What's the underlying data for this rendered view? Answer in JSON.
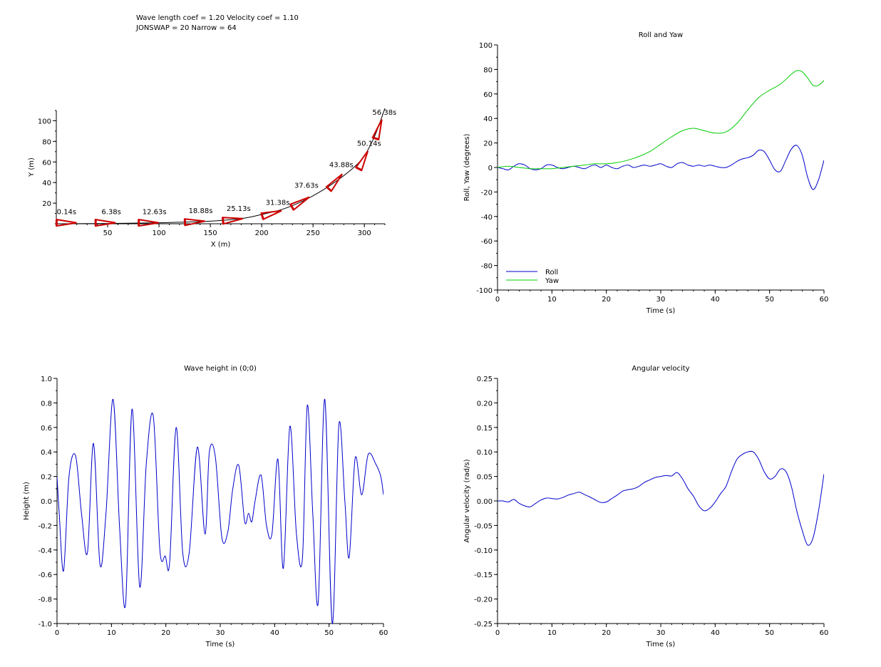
{
  "header": {
    "line1": "Wave length coef = 1.20 Velocity coef = 1.10",
    "line2": "JONSWAP = 20 Narrow = 64"
  },
  "chart_data": [
    {
      "id": "trajectory",
      "type": "line",
      "title": "",
      "xlabel": "X (m)",
      "ylabel": "Y (m)",
      "xlim": [
        0,
        320
      ],
      "ylim": [
        0,
        110
      ],
      "xticks": [
        50,
        100,
        150,
        200,
        250,
        300
      ],
      "yticks": [
        20,
        40,
        60,
        80,
        100
      ],
      "path": [
        [
          0,
          0
        ],
        [
          50,
          0.3
        ],
        [
          100,
          1
        ],
        [
          150,
          2.5
        ],
        [
          180,
          5
        ],
        [
          200,
          9
        ],
        [
          220,
          14
        ],
        [
          240,
          22
        ],
        [
          260,
          33
        ],
        [
          275,
          43
        ],
        [
          290,
          55
        ],
        [
          300,
          66
        ],
        [
          310,
          85
        ],
        [
          320,
          112
        ]
      ],
      "boats": [
        {
          "x": 10,
          "y": 1,
          "heading": 0,
          "label": "0.14s"
        },
        {
          "x": 48,
          "y": 1,
          "heading": 0,
          "label": "6.38s"
        },
        {
          "x": 90,
          "y": 1,
          "heading": 0,
          "label": "12.63s"
        },
        {
          "x": 135,
          "y": 2,
          "heading": 3,
          "label": "18.88s"
        },
        {
          "x": 172,
          "y": 4,
          "heading": 6,
          "label": "25.13s"
        },
        {
          "x": 210,
          "y": 10,
          "heading": 16,
          "label": "31.38s"
        },
        {
          "x": 238,
          "y": 21,
          "heading": 30,
          "label": "37.63s"
        },
        {
          "x": 272,
          "y": 41,
          "heading": 48,
          "label": "43.88s"
        },
        {
          "x": 299,
          "y": 62,
          "heading": 63,
          "label": "50.14s"
        },
        {
          "x": 314,
          "y": 92,
          "heading": 72,
          "label": "56.38s"
        }
      ],
      "boat_color": "#cc0000"
    },
    {
      "id": "roll-yaw",
      "type": "line",
      "title": "Roll and Yaw",
      "xlabel": "Time (s)",
      "ylabel": "Roll, Yaw (degrees)",
      "xlim": [
        0,
        60
      ],
      "ylim": [
        -100,
        100
      ],
      "xticks": [
        0,
        10,
        20,
        30,
        40,
        50,
        60
      ],
      "yticks": [
        -100,
        -80,
        -60,
        -40,
        -20,
        0,
        20,
        40,
        60,
        80,
        100
      ],
      "legend": "bottom-left",
      "series": [
        {
          "name": "Roll",
          "color": "#0000cc",
          "x": [
            0,
            1,
            2,
            3,
            4,
            5,
            6,
            7,
            8,
            9,
            10,
            11,
            12,
            13,
            14,
            15,
            16,
            17,
            18,
            19,
            20,
            21,
            22,
            23,
            24,
            25,
            26,
            27,
            28,
            29,
            30,
            31,
            32,
            33,
            34,
            35,
            36,
            37,
            38,
            39,
            40,
            41,
            42,
            43,
            44,
            45,
            46,
            47,
            48,
            49,
            50,
            51,
            52,
            53,
            54,
            55,
            56,
            57,
            58,
            59,
            60
          ],
          "values": [
            0,
            -1,
            -2,
            1,
            3,
            2,
            -1,
            -2,
            -1,
            2,
            2,
            0,
            -1,
            0,
            1,
            0,
            -1,
            1,
            2,
            0,
            2,
            0,
            -1,
            1,
            2,
            0,
            1,
            2,
            1,
            2,
            3,
            1,
            0,
            3,
            4,
            2,
            1,
            2,
            1,
            2,
            1,
            0,
            0,
            2,
            5,
            7,
            8,
            10,
            14,
            13,
            6,
            -2,
            -3,
            6,
            15,
            18,
            10,
            -8,
            -18,
            -10,
            6
          ]
        },
        {
          "name": "Yaw",
          "color": "#00cc00",
          "x": [
            0,
            2,
            4,
            6,
            8,
            10,
            12,
            14,
            16,
            18,
            20,
            22,
            24,
            26,
            28,
            30,
            32,
            34,
            36,
            38,
            40,
            42,
            44,
            46,
            48,
            50,
            52,
            54,
            55,
            56,
            57,
            58,
            59,
            60
          ],
          "values": [
            0,
            1,
            0,
            -1,
            -1,
            -1,
            0,
            1,
            2,
            3,
            3,
            4,
            6,
            9,
            13,
            19,
            25,
            30,
            32,
            30,
            28,
            29,
            36,
            47,
            57,
            63,
            68,
            76,
            79,
            78,
            73,
            67,
            67,
            71
          ]
        }
      ]
    },
    {
      "id": "wave-height",
      "type": "line",
      "title": "Wave height in (0;0)",
      "xlabel": "Time (s)",
      "ylabel": "Height (m)",
      "xlim": [
        0,
        60
      ],
      "ylim": [
        -1.0,
        1.0
      ],
      "xticks": [
        0,
        10,
        20,
        30,
        40,
        50,
        60
      ],
      "yticks": [
        -1.0,
        -0.8,
        -0.6,
        -0.4,
        -0.2,
        0.0,
        0.2,
        0.4,
        0.6,
        0.8,
        1.0
      ],
      "series": [
        {
          "name": "",
          "color": "#0000cc",
          "x": [
            0,
            0.4,
            1.2,
            2.2,
            3.4,
            4.5,
            5.6,
            6.7,
            7.9,
            9.0,
            10.3,
            11.5,
            12.6,
            13.8,
            15.2,
            16.4,
            17.7,
            18.9,
            19.9,
            20.7,
            21.9,
            23.1,
            24.3,
            25.8,
            27.2,
            28.0,
            29.1,
            30.3,
            31.4,
            32.3,
            33.4,
            34.5,
            35.2,
            35.8,
            36.4,
            37.5,
            38.5,
            39.5,
            40.6,
            41.6,
            42.8,
            44.0,
            45.1,
            46.0,
            47.0,
            48.0,
            49.2,
            50.6,
            51.8,
            52.9,
            53.7,
            54.8,
            56.0,
            57.2,
            58.6,
            59.5,
            60
          ],
          "values": [
            0.2,
            -0.1,
            -0.57,
            0.2,
            0.37,
            -0.1,
            -0.42,
            0.47,
            -0.52,
            -0.1,
            0.83,
            -0.22,
            -0.84,
            0.75,
            -0.7,
            0.3,
            0.69,
            -0.4,
            -0.45,
            -0.5,
            0.6,
            -0.42,
            -0.42,
            0.44,
            -0.27,
            0.4,
            0.36,
            -0.3,
            -0.25,
            0.1,
            0.29,
            -0.17,
            -0.1,
            -0.17,
            0.0,
            0.21,
            -0.2,
            -0.27,
            0.34,
            -0.55,
            0.61,
            -0.27,
            -0.47,
            0.78,
            -0.1,
            -0.83,
            0.83,
            -1.0,
            0.62,
            0.0,
            -0.46,
            0.35,
            0.05,
            0.38,
            0.3,
            0.2,
            0.05
          ]
        }
      ]
    },
    {
      "id": "angular-velocity",
      "type": "line",
      "title": "Angular velocity",
      "xlabel": "Time (s)",
      "ylabel": "Angular velocity (rad/s)",
      "xlim": [
        0,
        60
      ],
      "ylim": [
        -0.25,
        0.25
      ],
      "xticks": [
        0,
        10,
        20,
        30,
        40,
        50,
        60
      ],
      "yticks": [
        -0.25,
        -0.2,
        -0.15,
        -0.1,
        -0.05,
        0.0,
        0.05,
        0.1,
        0.15,
        0.2,
        0.25
      ],
      "series": [
        {
          "name": "",
          "color": "#0000cc",
          "x": [
            0,
            1,
            2,
            3,
            4,
            5,
            6,
            7,
            8,
            9,
            10,
            11,
            12,
            13,
            14,
            15,
            16,
            17,
            18,
            19,
            20,
            21,
            22,
            23,
            24,
            25,
            26,
            27,
            28,
            29,
            30,
            31,
            32,
            33,
            34,
            35,
            36,
            37,
            38,
            39,
            40,
            41,
            42,
            43,
            44,
            45,
            46,
            47,
            48,
            49,
            50,
            51,
            52,
            53,
            54,
            55,
            56,
            57,
            58,
            59,
            60
          ],
          "values": [
            0,
            0,
            -0.002,
            0.003,
            -0.005,
            -0.01,
            -0.012,
            -0.005,
            0.002,
            0.006,
            0.005,
            0.004,
            0.007,
            0.012,
            0.015,
            0.018,
            0.013,
            0.008,
            0.002,
            -0.003,
            -0.002,
            0.005,
            0.012,
            0.02,
            0.023,
            0.025,
            0.03,
            0.038,
            0.043,
            0.048,
            0.05,
            0.052,
            0.051,
            0.058,
            0.045,
            0.025,
            0.01,
            -0.01,
            -0.02,
            -0.015,
            -0.002,
            0.015,
            0.03,
            0.06,
            0.085,
            0.095,
            0.1,
            0.1,
            0.085,
            0.06,
            0.045,
            0.05,
            0.065,
            0.06,
            0.03,
            -0.02,
            -0.06,
            -0.09,
            -0.075,
            -0.02,
            0.055
          ]
        }
      ]
    }
  ]
}
